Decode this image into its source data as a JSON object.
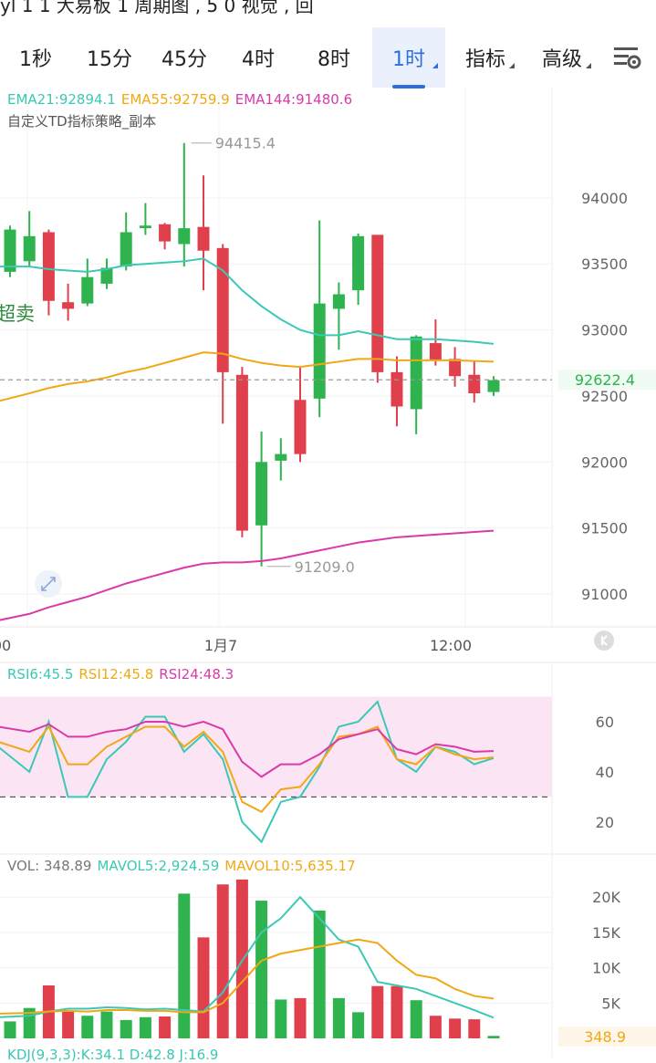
{
  "status_text": "yl 1 1 大易板 1 周期图 , 5 0 视觉 , 回",
  "tabs": [
    {
      "label": "1秒",
      "active": false,
      "dropdown": false
    },
    {
      "label": "15分",
      "active": false,
      "dropdown": false
    },
    {
      "label": "45分",
      "active": false,
      "dropdown": false
    },
    {
      "label": "4时",
      "active": false,
      "dropdown": false
    },
    {
      "label": "8时",
      "active": false,
      "dropdown": false
    },
    {
      "label": "1时",
      "active": true,
      "dropdown": true
    },
    {
      "label": "指标",
      "active": false,
      "dropdown": true
    },
    {
      "label": "高级",
      "active": false,
      "dropdown": true
    }
  ],
  "settings_icon": "chart-settings-icon",
  "colors": {
    "up": "#2eb34e",
    "down": "#e0404c",
    "ema21": "#3cc8b4",
    "ema55": "#f0a814",
    "ema144": "#d93aa8",
    "rsi_band": "#fbe4f3"
  },
  "ema_legend": {
    "ema21": "EMA21:92894.1",
    "ema55": "EMA55:92759.9",
    "ema144": "EMA144:91480.6"
  },
  "strategy_label": "自定义TD指标策略_副本",
  "signal_label": "超卖",
  "current_price": "92622.4",
  "rsi_legend": {
    "rsi6": "RSI6:45.5",
    "rsi12": "RSI12:45.8",
    "rsi24": "RSI24:48.3"
  },
  "vol_legend": {
    "vol": "VOL: 348.89",
    "mavol5": "MAVOL5:2,924.59",
    "mavol10": "MAVOL10:5,635.17"
  },
  "vol_current": "348.9",
  "kdj_legend": "KDJ(9,3,3):K:34.1 D:42.8 J:16.9",
  "chart_data": [
    {
      "type": "candlestick",
      "x_tick_labels": [
        "00",
        "1月7",
        "12:00"
      ],
      "y_ticks": [
        91000,
        91500,
        92000,
        92500,
        93000,
        93500,
        94000
      ],
      "ylim": [
        90800,
        94600
      ],
      "max_label": "94415.4",
      "min_label": "91209.0",
      "last_price": 92622.4,
      "candles": [
        {
          "o": 93440,
          "h": 93790,
          "l": 93400,
          "c": 93760
        },
        {
          "o": 93520,
          "h": 93900,
          "l": 93480,
          "c": 93710
        },
        {
          "o": 93740,
          "h": 93760,
          "l": 93110,
          "c": 93220
        },
        {
          "o": 93210,
          "h": 93350,
          "l": 93070,
          "c": 93160
        },
        {
          "o": 93200,
          "h": 93540,
          "l": 93180,
          "c": 93400
        },
        {
          "o": 93350,
          "h": 93540,
          "l": 93310,
          "c": 93470
        },
        {
          "o": 93480,
          "h": 93890,
          "l": 93450,
          "c": 93740
        },
        {
          "o": 93770,
          "h": 93960,
          "l": 93720,
          "c": 93790
        },
        {
          "o": 93800,
          "h": 93810,
          "l": 93610,
          "c": 93670
        },
        {
          "o": 93650,
          "h": 94415,
          "l": 93480,
          "c": 93770
        },
        {
          "o": 93780,
          "h": 94170,
          "l": 93300,
          "c": 93600
        },
        {
          "o": 93620,
          "h": 93650,
          "l": 92290,
          "c": 92680
        },
        {
          "o": 92660,
          "h": 92720,
          "l": 91430,
          "c": 91480
        },
        {
          "o": 91520,
          "h": 92230,
          "l": 91209,
          "c": 92000
        },
        {
          "o": 92010,
          "h": 92180,
          "l": 91860,
          "c": 92060
        },
        {
          "o": 92470,
          "h": 92720,
          "l": 92000,
          "c": 92060
        },
        {
          "o": 92480,
          "h": 93830,
          "l": 92340,
          "c": 93200
        },
        {
          "o": 93160,
          "h": 93360,
          "l": 92850,
          "c": 93270
        },
        {
          "o": 93300,
          "h": 93730,
          "l": 93190,
          "c": 93710
        },
        {
          "o": 93720,
          "h": 93720,
          "l": 92600,
          "c": 92680
        },
        {
          "o": 92680,
          "h": 92800,
          "l": 92270,
          "c": 92420
        },
        {
          "o": 92400,
          "h": 92960,
          "l": 92210,
          "c": 92950
        },
        {
          "o": 92900,
          "h": 93080,
          "l": 92730,
          "c": 92770
        },
        {
          "o": 92780,
          "h": 92870,
          "l": 92570,
          "c": 92650
        },
        {
          "o": 92660,
          "h": 92760,
          "l": 92450,
          "c": 92520
        },
        {
          "o": 92530,
          "h": 92650,
          "l": 92500,
          "c": 92620
        }
      ],
      "series": [
        {
          "name": "EMA21",
          "values": [
            93480,
            93480,
            93460,
            93450,
            93440,
            93460,
            93490,
            93500,
            93510,
            93520,
            93540,
            93450,
            93300,
            93180,
            93080,
            93000,
            92960,
            92960,
            92990,
            92960,
            92930,
            92930,
            92930,
            92920,
            92910,
            92894
          ]
        },
        {
          "name": "EMA55",
          "values": [
            92460,
            92520,
            92560,
            92590,
            92610,
            92640,
            92680,
            92710,
            92750,
            92790,
            92830,
            92820,
            92780,
            92750,
            92730,
            92720,
            92740,
            92760,
            92780,
            92780,
            92770,
            92770,
            92770,
            92770,
            92765,
            92760
          ]
        },
        {
          "name": "EMA144",
          "values": [
            90800,
            90850,
            90900,
            90940,
            90980,
            91030,
            91080,
            91120,
            91160,
            91200,
            91230,
            91240,
            91240,
            91250,
            91270,
            91300,
            91330,
            91360,
            91390,
            91410,
            91430,
            91440,
            91450,
            91460,
            91470,
            91480
          ]
        }
      ]
    },
    {
      "type": "line",
      "y_ticks": [
        20,
        40,
        60
      ],
      "ylim": [
        13,
        72
      ],
      "band": [
        30,
        70
      ],
      "series": [
        {
          "name": "RSI6",
          "values": [
            50,
            40,
            60,
            30,
            30,
            45,
            52,
            62,
            62,
            48,
            55,
            45,
            20,
            12,
            28,
            30,
            42,
            58,
            60,
            68,
            45,
            40,
            50,
            48,
            43,
            45.5
          ]
        },
        {
          "name": "RSI12",
          "values": [
            52,
            48,
            58,
            43,
            43,
            50,
            54,
            58,
            58,
            50,
            56,
            48,
            28,
            24,
            33,
            34,
            43,
            54,
            55,
            58,
            45,
            43,
            50,
            47,
            45,
            45.8
          ]
        },
        {
          "name": "RSI24",
          "values": [
            58,
            56,
            59,
            54,
            54,
            56,
            57,
            60,
            60,
            58,
            60,
            57,
            44,
            38,
            43,
            43,
            47,
            53,
            55,
            57,
            49,
            47,
            51,
            50,
            48,
            48.3
          ]
        }
      ]
    },
    {
      "type": "bar",
      "y_ticks": [
        "5K",
        "10K",
        "15K",
        "20K"
      ],
      "ylim": [
        0,
        23000
      ],
      "volumes": [
        2400,
        4300,
        7500,
        3800,
        3200,
        3800,
        2600,
        3000,
        3100,
        20500,
        14300,
        21800,
        22500,
        19500,
        5500,
        5700,
        18100,
        5700,
        3700,
        7400,
        7400,
        5400,
        3200,
        2800,
        2700,
        349
      ],
      "series": [
        {
          "name": "MAVOL5",
          "values": [
            3000,
            3200,
            3800,
            4200,
            4200,
            4400,
            4300,
            4100,
            4200,
            4000,
            3800,
            6500,
            11000,
            15000,
            17000,
            20000,
            17000,
            14000,
            13000,
            8000,
            7500,
            7000,
            6000,
            5000,
            4000,
            2925
          ]
        },
        {
          "name": "MAVOL10",
          "values": [
            3500,
            3600,
            3800,
            3900,
            3800,
            4000,
            4000,
            3900,
            3900,
            3700,
            3700,
            5000,
            8000,
            11000,
            12000,
            12500,
            13000,
            13500,
            14000,
            13500,
            11000,
            9000,
            8500,
            7000,
            6000,
            5635
          ]
        }
      ]
    }
  ]
}
